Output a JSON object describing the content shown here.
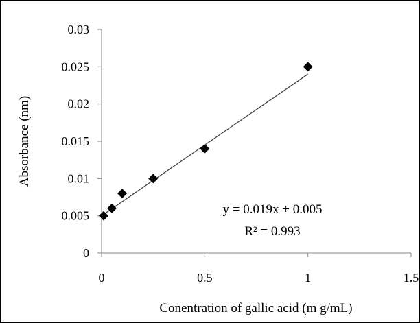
{
  "chart_data": {
    "type": "scatter",
    "xlabel": "Conentration of gallic acid (m g/mL)",
    "ylabel": "Absorbance (nm)",
    "xlim": [
      0,
      1.5
    ],
    "ylim": [
      0,
      0.03
    ],
    "x_ticks": [
      0,
      0.5,
      1,
      1.5
    ],
    "x_tick_labels": [
      "0",
      "0.5",
      "1",
      "1.5"
    ],
    "y_ticks": [
      0,
      0.005,
      0.01,
      0.015,
      0.02,
      0.025,
      0.03
    ],
    "y_tick_labels": [
      "0",
      "0.005",
      "0.01",
      "0.015",
      "0.02",
      "0.025",
      "0.03"
    ],
    "grid": false,
    "legend": "none",
    "marker": "diamond",
    "marker_color": "#000000",
    "points": [
      {
        "x": 0.01,
        "y": 0.005
      },
      {
        "x": 0.05,
        "y": 0.006
      },
      {
        "x": 0.1,
        "y": 0.008
      },
      {
        "x": 0.25,
        "y": 0.01
      },
      {
        "x": 0.5,
        "y": 0.014
      },
      {
        "x": 1.0,
        "y": 0.025
      }
    ],
    "trendline": {
      "type": "linear",
      "slope": 0.019,
      "intercept": 0.005,
      "color": "#404040",
      "x_range": [
        0.01,
        1.0
      ]
    },
    "annotations": {
      "equation": "y = 0.019x + 0.005",
      "r_squared": "R² = 0.993"
    }
  }
}
